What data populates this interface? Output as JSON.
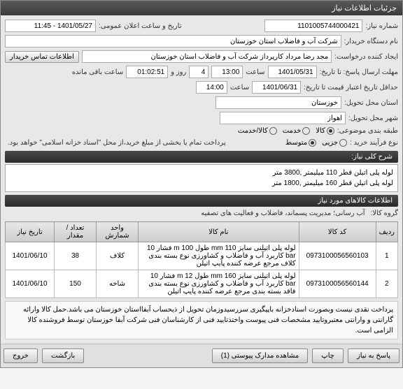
{
  "titlebar": "جزئیات اطلاعات نیاز",
  "labels": {
    "need_no": "شماره نیاز:",
    "announce": "تاریخ و ساعت اعلان عمومی:",
    "org": "نام دستگاه خریدار:",
    "creator": "ایجاد کننده درخواست:",
    "contact_btn": "اطلاعات تماس خریدار",
    "deadline": "مهلت ارسال پاسخ: تا تاریخ:",
    "hour": "ساعت",
    "days_left_lbl": "روز و",
    "remaining": "ساعت باقی مانده",
    "valid": "حداقل تاریخ اعتبار قیمت تا تاریخ:",
    "province": "استان محل تحویل:",
    "city": "شهر محل تحویل:",
    "category": "طبقه بندی موضوعی:",
    "cat_goods": "کالا",
    "cat_service": "خدمت",
    "cat_both": "کالا/خدمت",
    "process": "نوع فرآیند خرید :",
    "proc_small": "جزیی",
    "proc_med": "متوسط",
    "payment_note": "پرداخت تمام یا بخشی از مبلغ خرید،از محل \"اسناد خزانه اسلامی\" خواهد بود.",
    "summary_head": "شرح کلی نیاز:",
    "items_head": "اطلاعات کالاهای مورد نیاز",
    "group": "گروه کالا:",
    "col_row": "ردیف",
    "col_code": "کد کالا",
    "col_name": "نام کالا",
    "col_unit": "واحد شمارش",
    "col_qty": "تعداد / مقدار",
    "col_date": "تاریخ نیاز",
    "respond": "پاسخ به نیاز",
    "print": "چاپ",
    "docs": "مشاهده مدارک پیوستی (1)",
    "back": "بازگشت",
    "exit": "خروج"
  },
  "values": {
    "need_no": "1101005744000421",
    "announce": "1401/05/27 - 11:45",
    "org": "شرکت آب و فاضلاب استان خوزستان",
    "creator": "مجد رضا مرداد کارپرداز شرکت آب و فاضلاب استان خوزستان",
    "deadline_date": "1401/05/31",
    "deadline_time": "13:00",
    "days_left": "4",
    "time_left": "01:02:51",
    "valid_date": "1401/06/31",
    "valid_time": "14:00",
    "province": "خوزستان",
    "city": "اهواز",
    "summary1": "لوله پلی اتیلن قطر 110 میلیمتر ,3800 متر",
    "summary2": "لوله پلی اتیلن قطر 160 میلیمتر ,1800 متر",
    "group": "آب رسانی؛ مدیریت پسماند، فاضلاب و فعالیت های تصفیه"
  },
  "table": {
    "rows": [
      {
        "n": "1",
        "code": "0973100056560103",
        "name": "لوله پلی اتیلنی سایز 110 mm طول 100 m فشار 10 bar کاربرد آب و فاضلاب و کشاورزی نوع بسته بندی کلاف مرجع عرضه کننده پایپ اتیلن",
        "unit": "کلاف",
        "qty": "38",
        "date": "1401/06/10"
      },
      {
        "n": "2",
        "code": "0973100056560144",
        "name": "لوله پلی اتیلنی سایز 160 mm طول 12 m فشار 10 bar کاربرد آب و فاضلاب و کشاورزی نوع بسته بندی فاقد بسته بندی مرجع عرضه کننده پایپ اتیلن",
        "unit": "شاخه",
        "qty": "150",
        "date": "1401/06/10"
      }
    ]
  },
  "footer_note": "پرداخت نقدی نیست وبصورت اسنادخزانه باپیگیری سررسیدوزمان تحویل از ذیحساب آبفااستان خوزستان می باشد.حمل کالا وارائه گارانتی و وارانتی معتبروتایید مشخصات فنی پیوست واختذتایید فنی از کارشناسان فنی شرکت آبفا خوزستان توسط فروشنده کالا الزامی است."
}
